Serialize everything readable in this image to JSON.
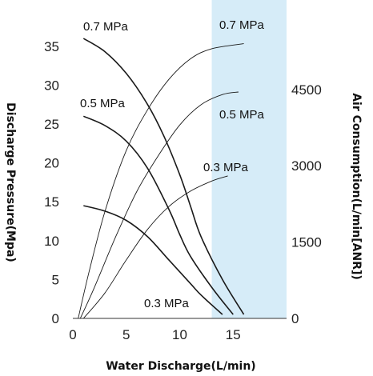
{
  "chart_data": {
    "type": "line",
    "xlabel": "Water Discharge(L/min)",
    "ylabel_left": "Discharge Pressure(Mpa)",
    "ylabel_right": "Air Consumption(L/min[ANR])",
    "xlim": [
      0,
      20
    ],
    "ylim_left": [
      0,
      40
    ],
    "ylim_right": [
      0,
      6000
    ],
    "x_ticks": [
      0,
      5,
      10,
      15
    ],
    "y_left_ticks": [
      0,
      5,
      10,
      15,
      20,
      25,
      30,
      35
    ],
    "y_right_ticks": [
      0,
      1500,
      3000,
      4500
    ],
    "shaded_region": {
      "x_from": 13,
      "x_to": 20,
      "color": "#d6ecf8"
    },
    "pressure_series": [
      {
        "name": "0.7 MPa",
        "label": "0.7 MPa",
        "axis": "left",
        "x": [
          1,
          3,
          5,
          7,
          8.5,
          10,
          11,
          12,
          14,
          16
        ],
        "y": [
          36,
          34.3,
          31.5,
          27.5,
          23.5,
          18.5,
          14.5,
          10.5,
          5,
          0.5
        ]
      },
      {
        "name": "0.5 MPa",
        "label": "0.5 MPa",
        "axis": "left",
        "x": [
          1,
          3,
          5,
          7,
          9,
          10,
          11,
          13,
          15
        ],
        "y": [
          26,
          24.8,
          22.8,
          19.3,
          14,
          10.8,
          8,
          4,
          0.5
        ]
      },
      {
        "name": "0.3 MPa",
        "label": "0.3 MPa",
        "axis": "left",
        "x": [
          1,
          3,
          5,
          7,
          9,
          11,
          12,
          14
        ],
        "y": [
          14.5,
          13.8,
          12.6,
          10.5,
          7.5,
          4.5,
          3,
          0.5
        ]
      }
    ],
    "air_series": [
      {
        "name": "0.7 MPa",
        "label": "0.7 MPa",
        "axis": "right",
        "x": [
          0.5,
          1.5,
          3,
          5,
          7,
          9,
          11,
          13,
          16
        ],
        "y": [
          0,
          900,
          2100,
          3300,
          4100,
          4700,
          5100,
          5300,
          5400
        ]
      },
      {
        "name": "0.5 MPa",
        "label": "0.5 MPa",
        "axis": "right",
        "x": [
          0.7,
          2,
          4,
          6,
          8,
          10,
          12,
          14,
          15.5
        ],
        "y": [
          0,
          600,
          1600,
          2500,
          3200,
          3800,
          4200,
          4400,
          4450
        ]
      },
      {
        "name": "0.3 MPa",
        "label": "0.3 MPa",
        "axis": "right",
        "x": [
          1,
          3,
          5,
          7,
          9,
          11,
          13,
          14.5
        ],
        "y": [
          0,
          500,
          1150,
          1750,
          2200,
          2500,
          2700,
          2800
        ]
      }
    ]
  }
}
